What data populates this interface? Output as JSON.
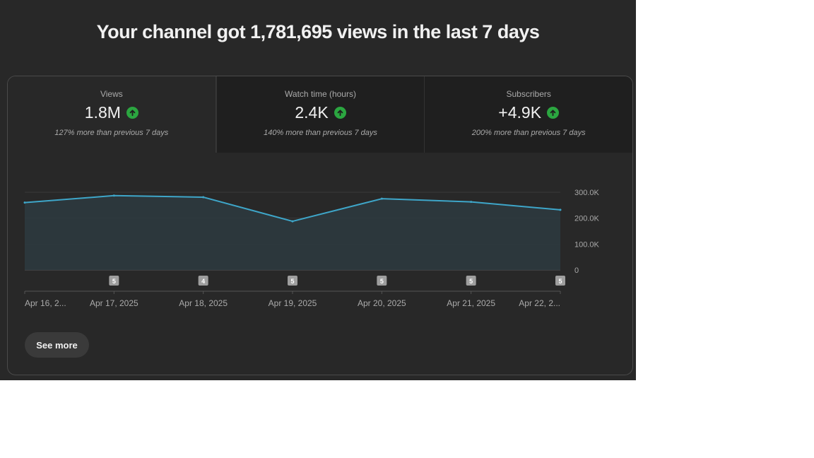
{
  "headline": "Your channel got 1,781,695 views in the last 7 days",
  "tabs": [
    {
      "label": "Views",
      "value": "1.8M",
      "note": "127% more than previous 7 days",
      "trend_icon": "arrow-up-icon"
    },
    {
      "label": "Watch time (hours)",
      "value": "2.4K",
      "note": "140% more than previous 7 days",
      "trend_icon": "arrow-up-icon"
    },
    {
      "label": "Subscribers",
      "value": "+4.9K",
      "note": "200% more than previous 7 days",
      "trend_icon": "arrow-up-icon"
    }
  ],
  "see_more_label": "See more",
  "colors": {
    "line": "#3ea6c9",
    "trend_up": "#2ba640",
    "background": "#282828"
  },
  "chart_data": {
    "type": "area",
    "x": [
      "Apr 16, 2...",
      "Apr 17, 2025",
      "Apr 18, 2025",
      "Apr 19, 2025",
      "Apr 20, 2025",
      "Apr 21, 2025",
      "Apr 22, 2..."
    ],
    "series": [
      {
        "values": [
          260000,
          287000,
          281000,
          188000,
          275000,
          263000,
          232000
        ]
      }
    ],
    "ylim": [
      0,
      300000
    ],
    "yticks": [
      "0",
      "100.0K",
      "200.0K",
      "300.0K"
    ],
    "markers": [
      {
        "x": "Apr 17, 2025",
        "label": "5"
      },
      {
        "x": "Apr 18, 2025",
        "label": "4"
      },
      {
        "x": "Apr 19, 2025",
        "label": "5"
      },
      {
        "x": "Apr 20, 2025",
        "label": "5"
      },
      {
        "x": "Apr 21, 2025",
        "label": "5"
      },
      {
        "x": "Apr 22, 2...",
        "label": "5"
      }
    ],
    "grid": true
  }
}
